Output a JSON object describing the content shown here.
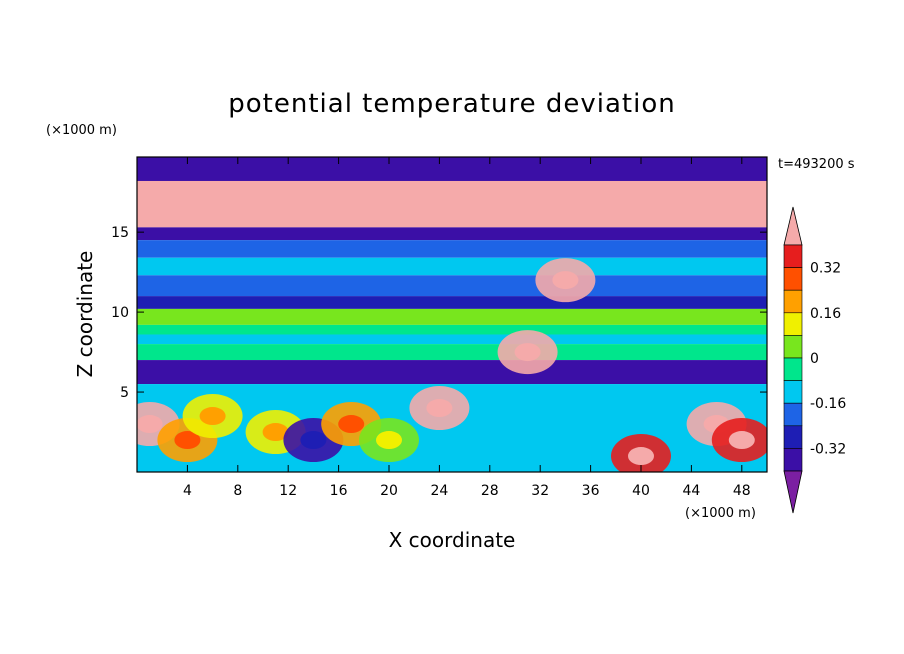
{
  "chart_data": {
    "type": "heatmap",
    "title": "potential temperature deviation",
    "xlabel": "X coordinate",
    "ylabel": "Z coordinate",
    "x_unit": "(×1000 m)",
    "y_unit": "(×1000 m)",
    "time_label": "t=493200 s",
    "xlim": [
      0,
      50
    ],
    "ylim": [
      0,
      19.7
    ],
    "xticks": [
      4,
      8,
      12,
      16,
      20,
      24,
      28,
      32,
      36,
      40,
      44,
      48
    ],
    "yticks": [
      5,
      10,
      15
    ],
    "colorbar": {
      "levels": [
        -0.4,
        -0.32,
        -0.24,
        -0.16,
        -0.08,
        0,
        0.08,
        0.16,
        0.24,
        0.32,
        0.4
      ],
      "labels": [
        "0.32",
        "0.16",
        "0",
        "-0.16",
        "-0.32"
      ],
      "label_values": [
        0.32,
        0.16,
        0,
        -0.16,
        -0.32
      ],
      "colors": [
        "#7b1fa2",
        "#3b0fa6",
        "#1e1eb4",
        "#1e64e6",
        "#00c8f0",
        "#00e68c",
        "#78e61e",
        "#f0f000",
        "#ffa000",
        "#ff5000",
        "#e61e1e",
        "#f5aaaa"
      ]
    },
    "layers": [
      {
        "z_from": 18.2,
        "z_to": 19.7,
        "level": -0.36
      },
      {
        "z_from": 15.3,
        "z_to": 18.2,
        "level": 0.44
      },
      {
        "z_from": 14.5,
        "z_to": 15.3,
        "level": -0.36
      },
      {
        "z_from": 13.4,
        "z_to": 14.5,
        "level": -0.2
      },
      {
        "z_from": 12.3,
        "z_to": 13.4,
        "level": -0.12
      },
      {
        "z_from": 11.0,
        "z_to": 12.3,
        "level": -0.2
      },
      {
        "z_from": 10.2,
        "z_to": 11.0,
        "level": -0.28
      },
      {
        "z_from": 9.2,
        "z_to": 10.2,
        "level": 0.04
      },
      {
        "z_from": 8.6,
        "z_to": 9.2,
        "level": -0.04
      },
      {
        "z_from": 8.0,
        "z_to": 8.6,
        "level": -0.12
      },
      {
        "z_from": 7.0,
        "z_to": 8.0,
        "level": -0.04
      },
      {
        "z_from": 5.5,
        "z_to": 7.0,
        "level": -0.36
      },
      {
        "z_from": 0.0,
        "z_to": 5.5,
        "level": -0.12
      }
    ],
    "features": [
      {
        "x": 1.0,
        "z": 3.0,
        "level": 0.4
      },
      {
        "x": 4.0,
        "z": 2.0,
        "level": 0.16
      },
      {
        "x": 6.0,
        "z": 3.5,
        "level": 0.08
      },
      {
        "x": 11.0,
        "z": 2.5,
        "level": 0.12
      },
      {
        "x": 14.0,
        "z": 2.0,
        "level": -0.36
      },
      {
        "x": 17.0,
        "z": 3.0,
        "level": 0.16
      },
      {
        "x": 20.0,
        "z": 2.0,
        "level": 0.04
      },
      {
        "x": 24.0,
        "z": 4.0,
        "level": 0.44
      },
      {
        "x": 31.0,
        "z": 7.5,
        "level": 0.44
      },
      {
        "x": 34.0,
        "z": 12.0,
        "level": 0.44
      },
      {
        "x": 40.0,
        "z": 1.0,
        "level": 0.32
      },
      {
        "x": 46.0,
        "z": 3.0,
        "level": 0.44
      },
      {
        "x": 48.0,
        "z": 2.0,
        "level": 0.36
      }
    ]
  }
}
